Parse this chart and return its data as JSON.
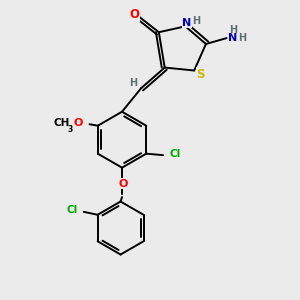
{
  "background_color": "#ebebeb",
  "bond_color": "#000000",
  "atom_colors": {
    "O": "#ff0000",
    "N": "#0000bb",
    "S": "#ccbb00",
    "Cl": "#00aa00",
    "C": "#000000",
    "H": "#607070"
  },
  "figsize": [
    3.0,
    3.0
  ],
  "dpi": 100
}
